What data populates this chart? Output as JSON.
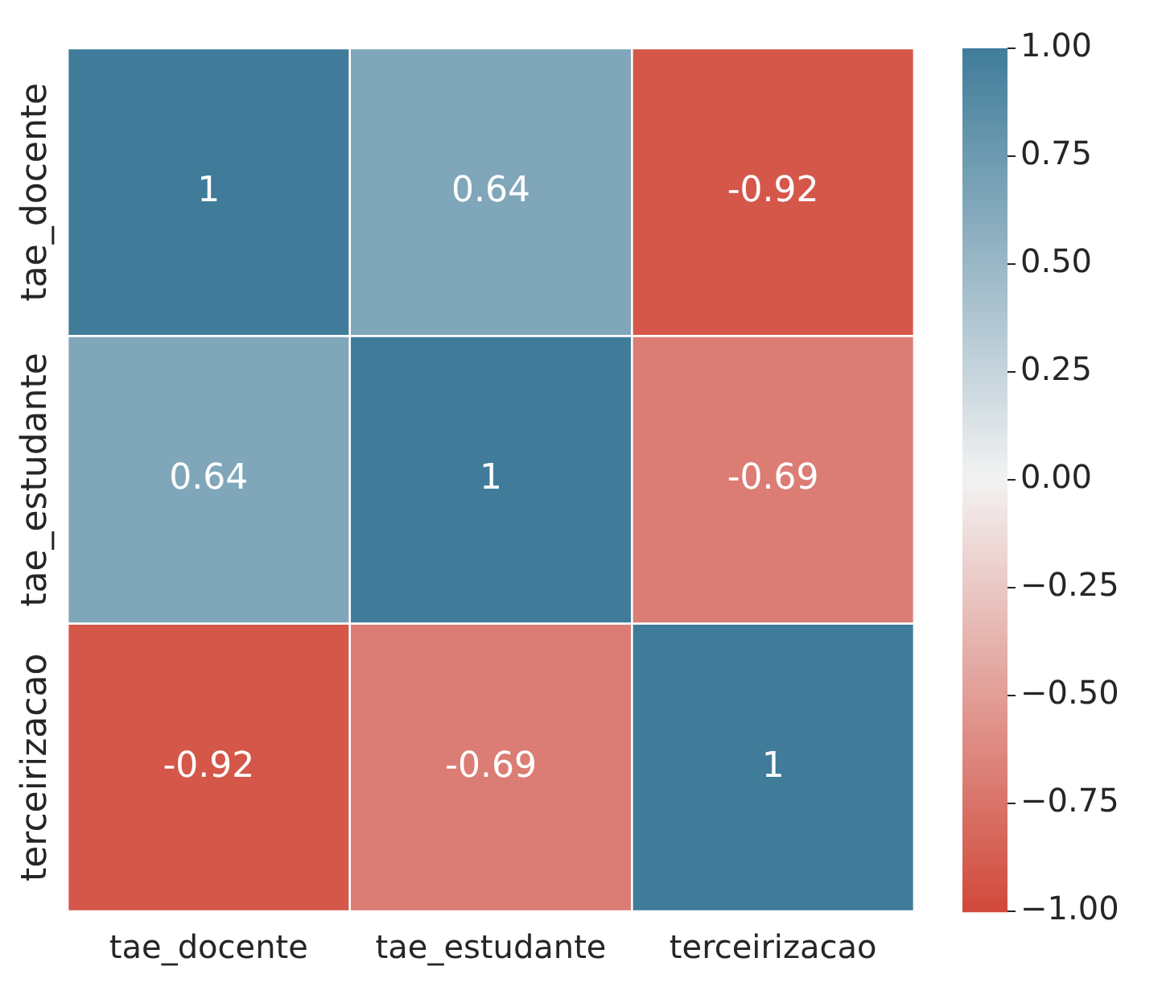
{
  "chart_data": {
    "type": "heatmap",
    "categories": [
      "tae_docente",
      "tae_estudante",
      "terceirizacao"
    ],
    "y_categories": [
      "tae_docente",
      "tae_estudante",
      "terceirizacao"
    ],
    "cells": [
      [
        1,
        0.64,
        -0.92
      ],
      [
        0.64,
        1,
        -0.69
      ],
      [
        -0.92,
        -0.69,
        1
      ]
    ],
    "clim": [
      -1,
      1
    ],
    "cticks": [
      {
        "value": 1,
        "label": "1.00"
      },
      {
        "value": 0.75,
        "label": "0.75"
      },
      {
        "value": 0.5,
        "label": "0.50"
      },
      {
        "value": 0.25,
        "label": "0.25"
      },
      {
        "value": 0,
        "label": "0.00"
      },
      {
        "value": -0.25,
        "label": "−0.25"
      },
      {
        "value": -0.5,
        "label": "−0.50"
      },
      {
        "value": -0.75,
        "label": "−0.75"
      },
      {
        "value": -1,
        "label": "−1.00"
      }
    ],
    "data_labels": true
  }
}
